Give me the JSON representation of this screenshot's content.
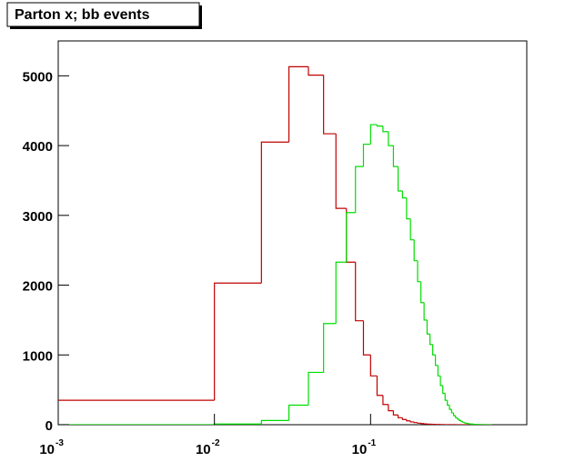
{
  "chart_data": {
    "type": "histogram",
    "title": "Parton x; bb events",
    "log_x": true,
    "xlim": [
      0.001,
      1
    ],
    "xticks": [
      {
        "value": 0.001,
        "label": "10",
        "sup": "-3"
      },
      {
        "value": 0.01,
        "label": "10",
        "sup": "-2"
      },
      {
        "value": 0.1,
        "label": "10",
        "sup": "-1"
      }
    ],
    "ylim": [
      0,
      5500
    ],
    "yticks": [
      0,
      1000,
      2000,
      3000,
      4000,
      5000
    ],
    "bins": [
      0,
      0.01,
      0.02,
      0.03,
      0.04,
      0.05,
      0.06,
      0.07,
      0.08,
      0.09,
      0.1,
      0.11,
      0.12,
      0.13,
      0.14,
      0.15,
      0.16,
      0.17,
      0.18,
      0.19,
      0.2,
      0.21,
      0.22,
      0.23,
      0.24,
      0.25,
      0.26,
      0.27,
      0.28,
      0.29,
      0.3,
      0.31,
      0.32,
      0.33,
      0.34,
      0.35,
      0.36,
      0.37,
      0.38,
      0.39,
      0.4,
      0.41,
      0.42,
      0.43,
      0.44,
      0.45,
      0.46,
      0.47,
      0.48,
      0.49,
      0.5,
      0.51,
      0.52,
      0.53,
      0.54,
      0.55,
      0.56,
      0.57,
      0.58,
      0.59,
      0.6
    ],
    "series": [
      {
        "color": "#c00000",
        "values": [
          350,
          2030,
          4050,
          5130,
          5010,
          4170,
          3100,
          2330,
          1490,
          1000,
          700,
          420,
          290,
          200,
          140,
          100,
          75,
          55,
          40,
          30,
          22,
          16,
          12,
          9,
          7,
          5,
          4,
          3,
          2,
          2,
          1,
          1,
          1,
          1,
          1,
          0,
          0,
          0,
          0,
          0,
          0,
          0,
          0,
          0,
          0,
          0,
          0,
          0,
          0,
          0,
          0,
          0,
          0,
          0,
          0,
          0,
          0,
          0,
          0,
          0
        ]
      },
      {
        "color": "#00dd00",
        "values": [
          0,
          10,
          60,
          280,
          750,
          1450,
          2330,
          3040,
          3700,
          4020,
          4300,
          4280,
          4200,
          4000,
          3700,
          3350,
          3250,
          2950,
          2650,
          2350,
          2050,
          1750,
          1500,
          1300,
          1150,
          1000,
          850,
          700,
          560,
          450,
          350,
          280,
          220,
          170,
          130,
          100,
          80,
          60,
          45,
          35,
          25,
          20,
          15,
          12,
          10,
          8,
          6,
          5,
          4,
          3,
          2,
          2,
          1,
          1,
          1,
          0,
          0,
          0,
          0,
          0
        ]
      }
    ]
  }
}
